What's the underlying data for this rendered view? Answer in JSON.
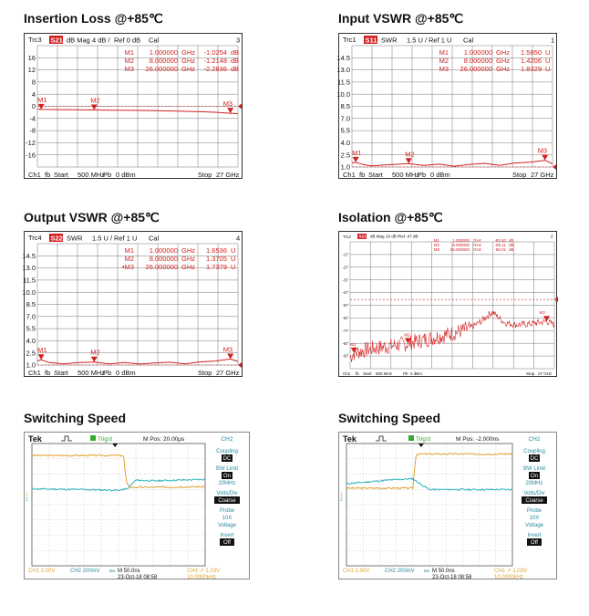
{
  "titles": {
    "insertion": "Insertion Loss @+85℃",
    "input_vswr": "Input VSWR @+85℃",
    "output_vswr": "Output VSWR @+85℃",
    "isolation": "Isolation @+85℃",
    "switching1": "Switching Speed",
    "switching2": "Switching Speed"
  },
  "chart_data": [
    {
      "id": "insertion",
      "type": "line",
      "title": "Insertion Loss @+85℃",
      "header": {
        "trace": "Trc3",
        "param": "S21",
        "format": "dB Mag",
        "scale": "4 dB /",
        "ref": "Ref 0 dB",
        "cal": "Cal",
        "num": "3"
      },
      "markers": [
        {
          "name": "M1",
          "freq": "1.000000",
          "unit": "GHz",
          "value": "-1.0254",
          "vunit": "dB",
          "x": 1,
          "y": -1.0254
        },
        {
          "name": "M2",
          "freq": "8.000000",
          "unit": "GHz",
          "value": "-1.2148",
          "vunit": "dB",
          "x": 8,
          "y": -1.2148
        },
        {
          "name": "M3",
          "freq": "26.000000",
          "unit": "GHz",
          "value": "-2.2836",
          "vunit": "dB",
          "x": 26,
          "y": -2.2836
        }
      ],
      "yticks": [
        "16",
        "12",
        "8",
        "4",
        "0",
        "-4",
        "-8",
        "-12",
        "-16"
      ],
      "ylim": [
        -20,
        20
      ],
      "xlim": [
        0.5,
        27
      ],
      "footer": {
        "ch": "Ch1",
        "fb": "fb",
        "start": "Start",
        "start_val": "500 MHz",
        "pb": "Pb",
        "power": "0 dBm",
        "stop": "Stop",
        "stop_val": "27 GHz"
      },
      "series": [
        {
          "name": "S21",
          "points": [
            [
              0.5,
              -0.9
            ],
            [
              1,
              -1.03
            ],
            [
              3,
              -1.08
            ],
            [
              5,
              -1.1
            ],
            [
              8,
              -1.21
            ],
            [
              10,
              -1.25
            ],
            [
              13,
              -1.33
            ],
            [
              16,
              -1.45
            ],
            [
              19,
              -1.6
            ],
            [
              22,
              -1.78
            ],
            [
              24,
              -1.95
            ],
            [
              26,
              -2.28
            ],
            [
              27,
              -2.45
            ]
          ]
        }
      ]
    },
    {
      "id": "input_vswr",
      "type": "line",
      "title": "Input VSWR @+85℃",
      "header": {
        "trace": "Trc1",
        "param": "S11",
        "format": "SWR",
        "scale": "1.5 U /",
        "ref": "Ref 1 U",
        "cal": "Cal",
        "num": "1"
      },
      "markers": [
        {
          "name": "M1",
          "freq": "1.000000",
          "unit": "GHz",
          "value": "1.5850",
          "vunit": "U",
          "x": 1,
          "y": 1.585
        },
        {
          "name": "M2",
          "freq": "8.000000",
          "unit": "GHz",
          "value": "1.4206",
          "vunit": "U",
          "x": 8,
          "y": 1.4206
        },
        {
          "name": "M3",
          "freq": "26.000000",
          "unit": "GHz",
          "value": "1.8329",
          "vunit": "U",
          "x": 26,
          "y": 1.8329
        }
      ],
      "yticks": [
        "14.5",
        "13.0",
        "11.5",
        "10.0",
        "8.5",
        "7.0",
        "5.5",
        "4.0",
        "2.5",
        "1.0"
      ],
      "ylim": [
        1,
        16
      ],
      "xlim": [
        0.5,
        27
      ],
      "footer": {
        "ch": "Ch1",
        "fb": "fb",
        "start": "Start",
        "start_val": "500 MHz",
        "pb": "Pb",
        "power": "0 dBm",
        "stop": "Stop",
        "stop_val": "27 GHz"
      },
      "series": [
        {
          "name": "S11",
          "points": [
            [
              0.5,
              1.5
            ],
            [
              1,
              1.58
            ],
            [
              2,
              1.3
            ],
            [
              3,
              1.15
            ],
            [
              5,
              1.25
            ],
            [
              8,
              1.42
            ],
            [
              10,
              1.2
            ],
            [
              12,
              1.35
            ],
            [
              14,
              1.1
            ],
            [
              16,
              1.3
            ],
            [
              18,
              1.45
            ],
            [
              20,
              1.2
            ],
            [
              22,
              1.5
            ],
            [
              24,
              1.6
            ],
            [
              26,
              1.83
            ],
            [
              27,
              1.4
            ]
          ]
        }
      ]
    },
    {
      "id": "output_vswr",
      "type": "line",
      "title": "Output VSWR @+85℃",
      "header": {
        "trace": "Trc4",
        "param": "S22",
        "format": "SWR",
        "scale": "1.5 U /",
        "ref": "Ref 1 U",
        "cal": "Cal",
        "num": "4"
      },
      "markers": [
        {
          "name": "M1",
          "freq": "1.000000",
          "unit": "GHz",
          "value": "1.6536",
          "vunit": "U",
          "x": 1,
          "y": 1.6536
        },
        {
          "name": "M2",
          "freq": "8.000000",
          "unit": "GHz",
          "value": "1.3705",
          "vunit": "U",
          "x": 8,
          "y": 1.3705
        },
        {
          "name": "M3",
          "freq": "26.000000",
          "unit": "GHz",
          "value": "1.7379",
          "vunit": "U",
          "x": 26,
          "y": 1.7379,
          "active": true
        }
      ],
      "yticks": [
        "14.5",
        "13.0",
        "11.5",
        "10.0",
        "8.5",
        "7.0",
        "5.5",
        "4.0",
        "2.5",
        "1.0"
      ],
      "ylim": [
        1,
        16
      ],
      "xlim": [
        0.5,
        27
      ],
      "footer": {
        "ch": "Ch1",
        "fb": "fb",
        "start": "Start",
        "start_val": "500 MHz",
        "pb": "Pb",
        "power": "0 dBm",
        "stop": "Stop",
        "stop_val": "27 GHz"
      },
      "series": [
        {
          "name": "S22",
          "points": [
            [
              0.5,
              1.5
            ],
            [
              1,
              1.65
            ],
            [
              2,
              1.3
            ],
            [
              4,
              1.15
            ],
            [
              6,
              1.3
            ],
            [
              8,
              1.37
            ],
            [
              10,
              1.15
            ],
            [
              12,
              1.3
            ],
            [
              14,
              1.12
            ],
            [
              16,
              1.25
            ],
            [
              18,
              1.35
            ],
            [
              20,
              1.15
            ],
            [
              22,
              1.4
            ],
            [
              24,
              1.5
            ],
            [
              26,
              1.74
            ],
            [
              27,
              1.45
            ]
          ]
        }
      ]
    },
    {
      "id": "isolation",
      "type": "line",
      "title": "Isolation @+85℃",
      "header": {
        "trace": "Trc2",
        "param": "S21",
        "format": "dB Mag",
        "scale": "10 dB /",
        "ref": "Ref -47 dB",
        "cal": "",
        "num": "2"
      },
      "markers": [
        {
          "name": "M1",
          "freq": "1.000000",
          "unit": "GHz",
          "value": "-93.40",
          "vunit": "dB",
          "x": 1,
          "y": -93.4
        },
        {
          "name": "M2",
          "freq": "8.000000",
          "unit": "GHz",
          "value": "-85.11",
          "vunit": "dB",
          "x": 8,
          "y": -85.11
        },
        {
          "name": "M3",
          "freq": "26.000000",
          "unit": "GHz",
          "value": "-66.01",
          "vunit": "dB",
          "x": 26,
          "y": -66.01
        }
      ],
      "yticks": [
        "-17",
        "-27",
        "-37",
        "-47",
        "-57",
        "-67",
        "-77",
        "-87",
        "-97"
      ],
      "ylim": [
        -107,
        3
      ],
      "xlim": [
        0.5,
        27
      ],
      "footer": {
        "ch": "Ch1",
        "fb": "fb",
        "start": "Start",
        "start_val": "500 MHz",
        "pb": "Pb",
        "power": "0 dBm",
        "stop": "Stop",
        "stop_val": "27 GHz"
      },
      "series": [
        {
          "name": "S21",
          "points": [
            [
              0.5,
              -97
            ],
            [
              1,
              -93.4
            ],
            [
              3,
              -90
            ],
            [
              5,
              -88
            ],
            [
              8,
              -85.1
            ],
            [
              10,
              -82
            ],
            [
              12,
              -79
            ],
            [
              14,
              -76
            ],
            [
              16,
              -72
            ],
            [
              17.5,
              -66
            ],
            [
              18.5,
              -60
            ],
            [
              19,
              -58
            ],
            [
              19.5,
              -61
            ],
            [
              20.5,
              -67
            ],
            [
              22,
              -69
            ],
            [
              24,
              -68
            ],
            [
              26,
              -66
            ],
            [
              27,
              -69
            ]
          ]
        }
      ]
    },
    {
      "id": "switching1",
      "type": "line",
      "title": "Switching Speed",
      "brand": "Tek",
      "trig": "Trig'd",
      "mpos": "M Pos: 20.00μs",
      "ch_label": "CH2",
      "menu": [
        {
          "label": "Coupling",
          "value": "DC"
        },
        {
          "label": "BW Limit",
          "value": "On",
          "sub": "20MHz"
        },
        {
          "label": "Volts/Div",
          "value": "Coarse"
        },
        {
          "label": "Probe",
          "value": "",
          "sub": "10X",
          "sub2": "Voltage"
        },
        {
          "label": "Invert",
          "value": "Off"
        }
      ],
      "bottom": {
        "ch1": "CH1  2.00V",
        "ch2": "CH2  200mV",
        "bw": "Bw",
        "m": "M 50.0ns",
        "date": "23-Oct-18 08:58",
        "trig": "CH1 ↗ 1.03V",
        "freq": "10.0000kHz"
      },
      "series": [
        {
          "name": "CH1",
          "color": "#e0a030",
          "points": [
            [
              0,
              7.6
            ],
            [
              0.53,
              7.6
            ],
            [
              0.54,
              6.2
            ],
            [
              0.55,
              5.6
            ],
            [
              0.57,
              5.4
            ],
            [
              1,
              5.45
            ]
          ]
        },
        {
          "name": "CH2",
          "color": "#28b0b8",
          "points": [
            [
              0,
              5.3
            ],
            [
              0.3,
              5.25
            ],
            [
              0.5,
              5.2
            ],
            [
              0.55,
              5.3
            ],
            [
              0.6,
              5.9
            ],
            [
              0.7,
              5.85
            ],
            [
              1,
              5.95
            ]
          ]
        }
      ]
    },
    {
      "id": "switching2",
      "type": "line",
      "title": "Switching Speed",
      "brand": "Tek",
      "trig": "Trig'd",
      "mpos": "M Pos: -2.000ns",
      "ch_label": "CH2",
      "menu": [
        {
          "label": "Coupling",
          "value": "DC"
        },
        {
          "label": "BW Limit",
          "value": "On",
          "sub": "20MHz"
        },
        {
          "label": "Volts/Div",
          "value": "Coarse"
        },
        {
          "label": "Probe",
          "value": "",
          "sub": "10X",
          "sub2": "Voltage"
        },
        {
          "label": "Invert",
          "value": "Off"
        }
      ],
      "bottom": {
        "ch1": "CH1  2.00V",
        "ch2": "CH2  200mV",
        "bw": "Bw",
        "m": "M 50.0ns",
        "date": "23-Oct-18 08:58",
        "trig": "CH1 ↗ 1.03V",
        "freq": "10.0000kHz"
      },
      "series": [
        {
          "name": "CH1",
          "color": "#e0a030",
          "points": [
            [
              0,
              5.35
            ],
            [
              0.4,
              5.35
            ],
            [
              0.41,
              6.6
            ],
            [
              0.42,
              7.7
            ],
            [
              1,
              7.7
            ]
          ]
        },
        {
          "name": "CH2",
          "color": "#28b0b8",
          "points": [
            [
              0,
              5.65
            ],
            [
              0.25,
              5.9
            ],
            [
              0.4,
              6.0
            ],
            [
              0.45,
              5.6
            ],
            [
              0.5,
              5.25
            ],
            [
              1,
              5.25
            ]
          ]
        }
      ]
    }
  ]
}
